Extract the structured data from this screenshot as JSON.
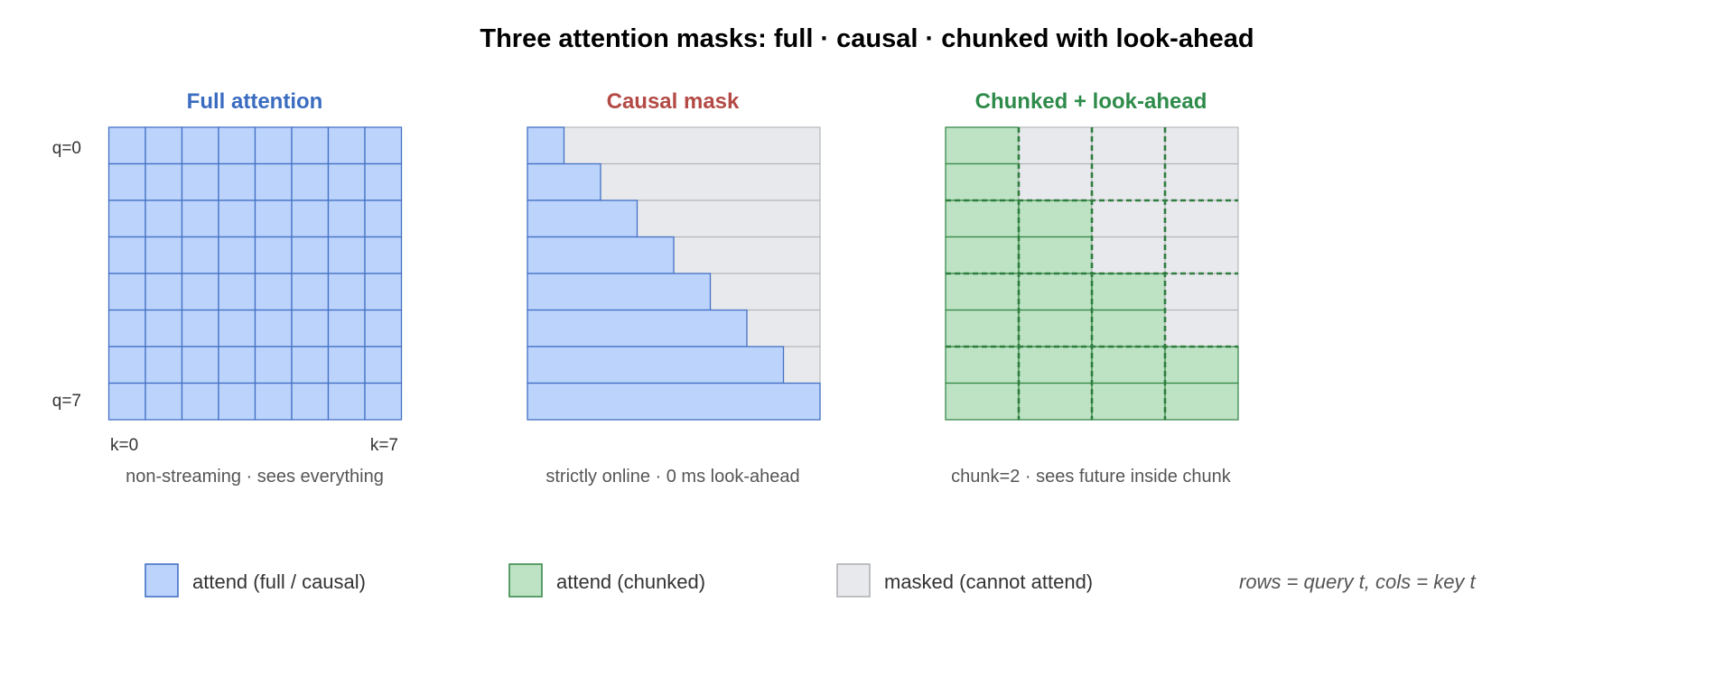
{
  "title": "Three attention masks: full · causal · chunked with look-ahead",
  "colors": {
    "blue_fill": "#bcd3fc",
    "blue_stroke": "#4472c4",
    "green_fill": "#bde3c4",
    "green_stroke": "#3a8a4d",
    "green_dash": "#2e7d3f",
    "gray_fill": "#e8e9ec",
    "gray_stroke": "#b0b2b6",
    "full_title": "#3a6cc0",
    "causal_title": "#b34a45",
    "chunked_title": "#2e8b4a"
  },
  "grid_size": 8,
  "panels": [
    {
      "id": "full",
      "title": "Full attention",
      "caption": "non-streaming · sees everything",
      "row_labels": {
        "first": "q=0",
        "last": "q=7"
      },
      "col_labels": {
        "first": "k=0",
        "last": "k=7"
      }
    },
    {
      "id": "causal",
      "title": "Causal mask",
      "caption": "strictly online · 0 ms look-ahead"
    },
    {
      "id": "chunked",
      "title": "Chunked + look-ahead",
      "caption": "chunk=2 · sees future inside chunk",
      "chunk_size": 2
    }
  ],
  "legend": {
    "items": [
      {
        "swatch": "blue",
        "label": "attend (full / causal)"
      },
      {
        "swatch": "green",
        "label": "attend (chunked)"
      },
      {
        "swatch": "gray",
        "label": "masked (cannot attend)"
      }
    ],
    "note": "rows = query t, cols = key t"
  }
}
